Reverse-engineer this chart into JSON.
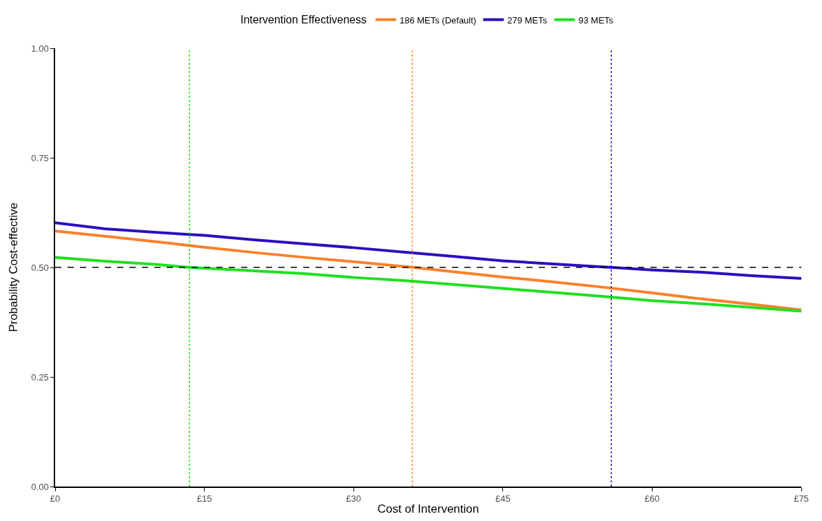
{
  "chart_data": {
    "type": "line",
    "xlabel": "Cost of Intervention",
    "ylabel": "Probability Cost-effective",
    "legend_title": "Intervention Effectiveness",
    "series": [
      {
        "name": "186 METs (Default)",
        "color": "#ff7f2a",
        "x": [
          0,
          5,
          10,
          15,
          20,
          25,
          30,
          36,
          40,
          45,
          50,
          55,
          60,
          65,
          70,
          75
        ],
        "values": [
          0.583,
          0.571,
          0.559,
          0.546,
          0.534,
          0.523,
          0.513,
          0.5,
          0.49,
          0.478,
          0.467,
          0.455,
          0.442,
          0.428,
          0.416,
          0.403
        ]
      },
      {
        "name": "279 METs",
        "color": "#2b0fbf",
        "x": [
          0,
          5,
          10,
          15,
          20,
          25,
          30,
          35,
          40,
          45,
          50,
          55.9,
          60,
          65,
          70,
          75
        ],
        "values": [
          0.602,
          0.588,
          0.58,
          0.573,
          0.563,
          0.554,
          0.545,
          0.535,
          0.525,
          0.515,
          0.508,
          0.5,
          0.494,
          0.489,
          0.481,
          0.475
        ]
      },
      {
        "name": "93 METs",
        "color": "#1fe01f",
        "x": [
          0,
          5,
          10,
          13.5,
          20,
          25,
          30,
          35,
          40,
          45,
          50,
          55,
          60,
          65,
          70,
          75
        ],
        "values": [
          0.523,
          0.514,
          0.507,
          0.5,
          0.492,
          0.486,
          0.477,
          0.47,
          0.461,
          0.452,
          0.443,
          0.434,
          0.424,
          0.417,
          0.409,
          0.4
        ]
      }
    ],
    "xlim": [
      0,
      75
    ],
    "ylim": [
      0,
      1
    ],
    "xticks": [
      {
        "value": 0,
        "label": "£0"
      },
      {
        "value": 15,
        "label": "£15"
      },
      {
        "value": 30,
        "label": "£30"
      },
      {
        "value": 45,
        "label": "£45"
      },
      {
        "value": 60,
        "label": "£60"
      },
      {
        "value": 75,
        "label": "£75"
      }
    ],
    "yticks": [
      {
        "value": 0,
        "label": "0.00"
      },
      {
        "value": 0.25,
        "label": "0.25"
      },
      {
        "value": 0.5,
        "label": "0.50"
      },
      {
        "value": 0.75,
        "label": "0.75"
      },
      {
        "value": 1,
        "label": "1.00"
      }
    ],
    "ref_lines": [
      {
        "axis": "y",
        "value": 0.5,
        "color": "#000000",
        "line_style": "dashed"
      },
      {
        "axis": "x",
        "value": 13.5,
        "color": "#1fe01f",
        "line_style": "dotted"
      },
      {
        "axis": "x",
        "value": 35.9,
        "color": "#ff7f2a",
        "line_style": "dotted"
      },
      {
        "axis": "x",
        "value": 55.9,
        "color": "#2b0fbf",
        "line_style": "dotted"
      }
    ],
    "legend": "top",
    "marker": "none",
    "line_style": "solid"
  }
}
